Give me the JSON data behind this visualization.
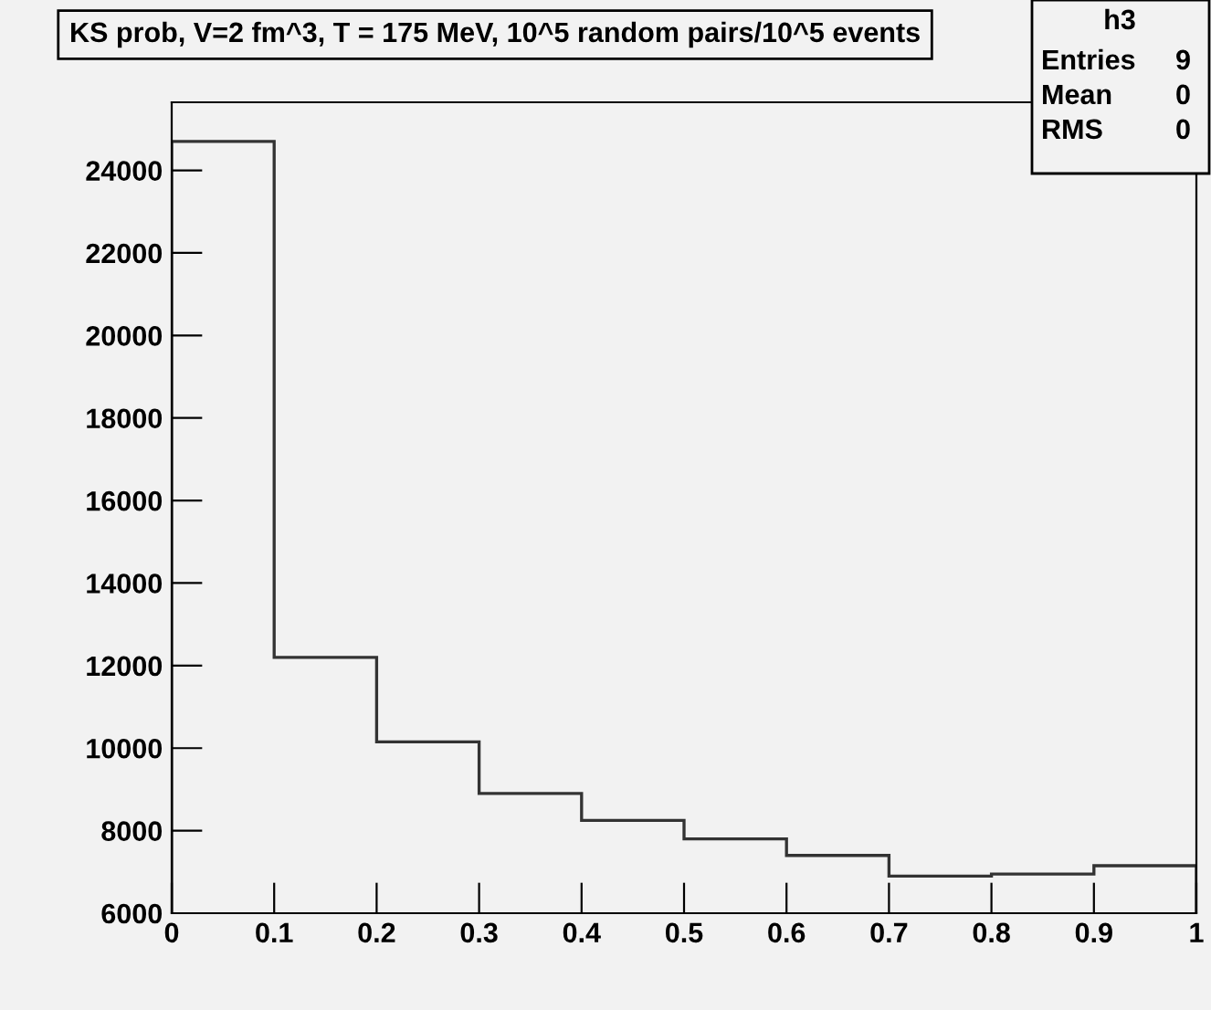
{
  "chart_data": {
    "type": "histogram",
    "title": "KS prob, V=2 fm^3, T = 175 MeV, 10^5 random pairs/10^5 events",
    "bins": [
      0,
      0.1,
      0.2,
      0.3,
      0.4,
      0.5,
      0.6,
      0.7,
      0.8,
      0.9,
      1
    ],
    "values": [
      24700,
      12200,
      10150,
      8900,
      8250,
      7800,
      7400,
      6900,
      6950,
      7150
    ],
    "color": "#333333",
    "xlim": [
      0,
      1
    ],
    "xticks": [
      0,
      0.1,
      0.2,
      0.3,
      0.4,
      0.5,
      0.6,
      0.7,
      0.8,
      0.9,
      1
    ],
    "ylim": [
      6000,
      25650
    ],
    "yticks": [
      6000,
      8000,
      10000,
      12000,
      14000,
      16000,
      18000,
      20000,
      22000,
      24000
    ],
    "grid": false,
    "legend": false,
    "annotations": [
      "h3",
      "Entries",
      "9",
      "Mean",
      "0",
      "RMS",
      "0"
    ]
  }
}
